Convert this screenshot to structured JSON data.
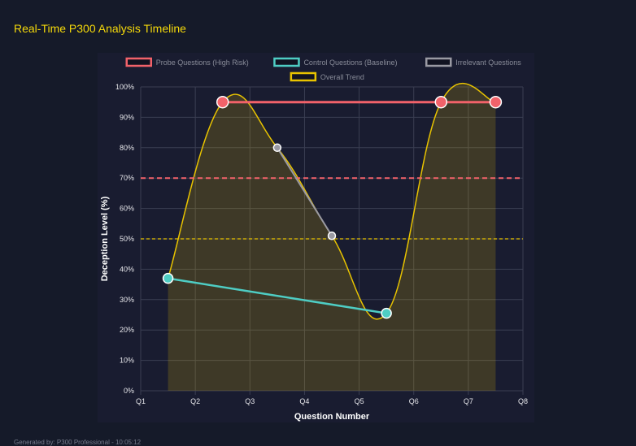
{
  "page": {
    "title": "Real-Time P300 Analysis Timeline",
    "footer": "Generated by: P300 Professional - 10:05:12"
  },
  "chart_data": {
    "type": "line",
    "title": "",
    "xlabel": "Question Number",
    "ylabel": "Deception Level (%)",
    "x_tick_labels": [
      "Q1",
      "Q2",
      "Q3",
      "Q4",
      "Q5",
      "Q6",
      "Q7",
      "Q8"
    ],
    "y_tick_labels": [
      "0%",
      "10%",
      "20%",
      "30%",
      "40%",
      "50%",
      "60%",
      "70%",
      "80%",
      "90%",
      "100%"
    ],
    "ylim": [
      0,
      100
    ],
    "grid": true,
    "legend_position": "top",
    "series": [
      {
        "name": "Probe Questions (High Risk)",
        "color": "#f2626a",
        "values": [
          null,
          95,
          null,
          null,
          null,
          95,
          95
        ]
      },
      {
        "name": "Control Questions (Baseline)",
        "color": "#4ecdc4",
        "values": [
          37,
          null,
          null,
          null,
          25.5,
          null,
          null
        ]
      },
      {
        "name": "Irrelevant Questions",
        "color": "#9a9aa3",
        "values": [
          null,
          null,
          80,
          51,
          null,
          null,
          null
        ]
      },
      {
        "name": "Overall Trend",
        "color": "#e8c300",
        "fill": true,
        "values": [
          37,
          95,
          80,
          51,
          25.5,
          95,
          95
        ]
      }
    ],
    "thresholds": [
      {
        "value": 70,
        "color": "#f2626a",
        "style": "dashed"
      },
      {
        "value": 50,
        "color": "#e8c300",
        "style": "dashed"
      }
    ]
  }
}
